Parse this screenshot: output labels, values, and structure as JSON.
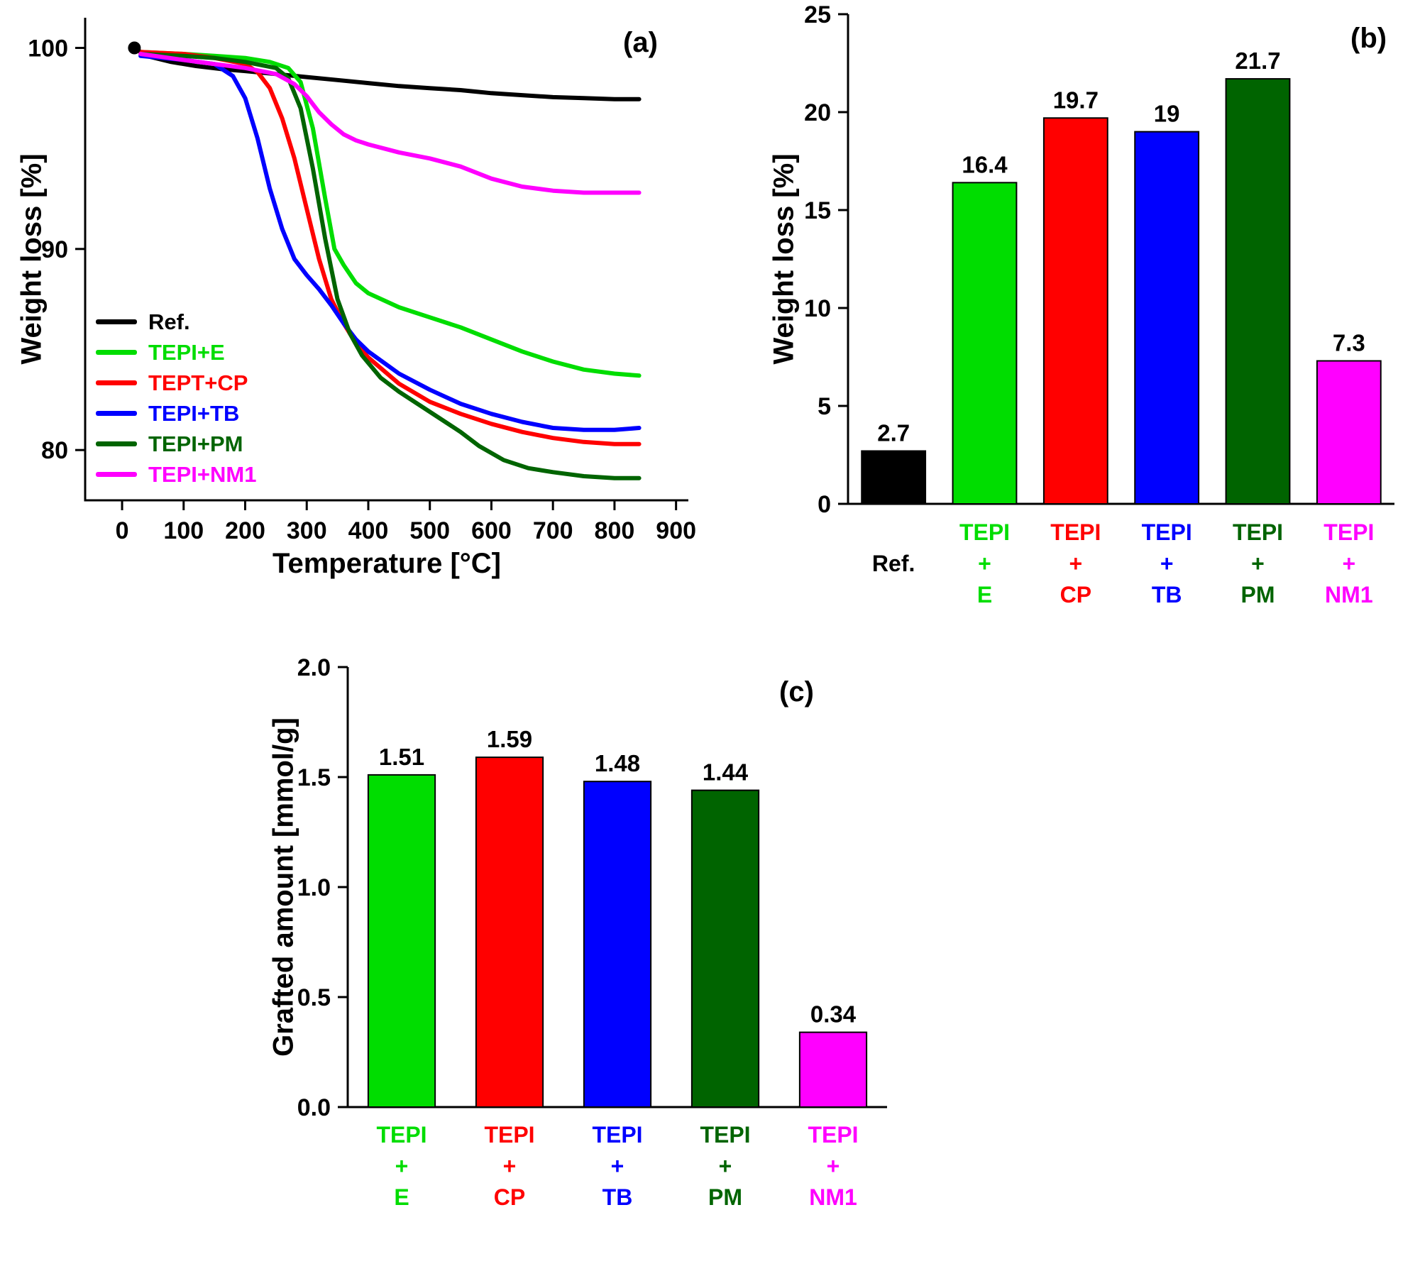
{
  "chart_data": [
    {
      "id": "a",
      "type": "line",
      "tag": "(a)",
      "xlabel": "Temperature [°C]",
      "ylabel": "Weight loss [%]",
      "xlim": [
        -60,
        920
      ],
      "ylim": [
        77.5,
        101.5
      ],
      "xticks": [
        0,
        100,
        200,
        300,
        400,
        500,
        600,
        700,
        800,
        900
      ],
      "xtick_labels": [
        "0",
        "100",
        "200",
        "300",
        "400",
        "500",
        "600",
        "700",
        "800",
        "900"
      ],
      "yticks": [
        80,
        90,
        100
      ],
      "ytick_labels": [
        "80",
        "90",
        "100"
      ],
      "grid": false,
      "legend_position": "inside bottom-left",
      "series": [
        {
          "name": "Ref.",
          "color": "#000000",
          "points": [
            [
              20,
              100
            ],
            [
              40,
              99.6
            ],
            [
              80,
              99.3
            ],
            [
              120,
              99.1
            ],
            [
              160,
              98.95
            ],
            [
              200,
              98.85
            ],
            [
              250,
              98.7
            ],
            [
              300,
              98.55
            ],
            [
              350,
              98.4
            ],
            [
              400,
              98.25
            ],
            [
              450,
              98.1
            ],
            [
              500,
              98
            ],
            [
              550,
              97.9
            ],
            [
              600,
              97.75
            ],
            [
              650,
              97.65
            ],
            [
              700,
              97.55
            ],
            [
              750,
              97.5
            ],
            [
              800,
              97.45
            ],
            [
              840,
              97.45
            ]
          ]
        },
        {
          "name": "TEPI+E",
          "color": "#00dd00",
          "points": [
            [
              30,
              99.8
            ],
            [
              100,
              99.7
            ],
            [
              150,
              99.6
            ],
            [
              200,
              99.5
            ],
            [
              240,
              99.3
            ],
            [
              270,
              99
            ],
            [
              290,
              98.3
            ],
            [
              310,
              96
            ],
            [
              330,
              92.5
            ],
            [
              345,
              90
            ],
            [
              360,
              89.2
            ],
            [
              380,
              88.3
            ],
            [
              400,
              87.8
            ],
            [
              450,
              87.1
            ],
            [
              500,
              86.6
            ],
            [
              550,
              86.1
            ],
            [
              600,
              85.5
            ],
            [
              650,
              84.9
            ],
            [
              700,
              84.4
            ],
            [
              750,
              84
            ],
            [
              800,
              83.8
            ],
            [
              840,
              83.7
            ]
          ]
        },
        {
          "name": "TEPT+CP",
          "color": "#ff0000",
          "points": [
            [
              30,
              99.8
            ],
            [
              100,
              99.7
            ],
            [
              150,
              99.5
            ],
            [
              200,
              99.2
            ],
            [
              220,
              98.8
            ],
            [
              240,
              98
            ],
            [
              260,
              96.5
            ],
            [
              280,
              94.5
            ],
            [
              300,
              92
            ],
            [
              320,
              89.5
            ],
            [
              340,
              87.5
            ],
            [
              360,
              86.3
            ],
            [
              380,
              85.3
            ],
            [
              400,
              84.6
            ],
            [
              450,
              83.3
            ],
            [
              500,
              82.4
            ],
            [
              550,
              81.8
            ],
            [
              600,
              81.3
            ],
            [
              650,
              80.9
            ],
            [
              700,
              80.6
            ],
            [
              750,
              80.4
            ],
            [
              800,
              80.3
            ],
            [
              840,
              80.3
            ]
          ]
        },
        {
          "name": "TEPI+TB",
          "color": "#0000ff",
          "points": [
            [
              30,
              99.6
            ],
            [
              100,
              99.4
            ],
            [
              150,
              99.2
            ],
            [
              180,
              98.6
            ],
            [
              200,
              97.5
            ],
            [
              220,
              95.5
            ],
            [
              240,
              93
            ],
            [
              260,
              91
            ],
            [
              280,
              89.5
            ],
            [
              300,
              88.7
            ],
            [
              320,
              88
            ],
            [
              340,
              87.2
            ],
            [
              360,
              86.3
            ],
            [
              380,
              85.5
            ],
            [
              400,
              84.9
            ],
            [
              450,
              83.8
            ],
            [
              500,
              83
            ],
            [
              550,
              82.3
            ],
            [
              600,
              81.8
            ],
            [
              650,
              81.4
            ],
            [
              700,
              81.1
            ],
            [
              750,
              81
            ],
            [
              800,
              81
            ],
            [
              840,
              81.1
            ]
          ]
        },
        {
          "name": "TEPI+PM",
          "color": "#006400",
          "points": [
            [
              30,
              99.7
            ],
            [
              100,
              99.6
            ],
            [
              150,
              99.5
            ],
            [
              200,
              99.3
            ],
            [
              250,
              99
            ],
            [
              270,
              98.5
            ],
            [
              290,
              97
            ],
            [
              310,
              94
            ],
            [
              330,
              90.5
            ],
            [
              350,
              87.5
            ],
            [
              370,
              85.8
            ],
            [
              390,
              84.7
            ],
            [
              420,
              83.6
            ],
            [
              450,
              82.9
            ],
            [
              500,
              81.9
            ],
            [
              550,
              80.9
            ],
            [
              580,
              80.2
            ],
            [
              620,
              79.5
            ],
            [
              660,
              79.1
            ],
            [
              700,
              78.9
            ],
            [
              750,
              78.7
            ],
            [
              800,
              78.6
            ],
            [
              840,
              78.6
            ]
          ]
        },
        {
          "name": "TEPI+NM1",
          "color": "#ff00ff",
          "points": [
            [
              30,
              99.7
            ],
            [
              100,
              99.4
            ],
            [
              150,
              99.2
            ],
            [
              200,
              99
            ],
            [
              250,
              98.7
            ],
            [
              280,
              98.2
            ],
            [
              300,
              97.6
            ],
            [
              320,
              96.8
            ],
            [
              340,
              96.2
            ],
            [
              360,
              95.7
            ],
            [
              380,
              95.4
            ],
            [
              400,
              95.2
            ],
            [
              450,
              94.8
            ],
            [
              500,
              94.5
            ],
            [
              550,
              94.1
            ],
            [
              600,
              93.5
            ],
            [
              650,
              93.1
            ],
            [
              700,
              92.9
            ],
            [
              750,
              92.8
            ],
            [
              800,
              92.8
            ],
            [
              840,
              92.8
            ]
          ]
        }
      ]
    },
    {
      "id": "b",
      "type": "bar",
      "tag": "(b)",
      "xlabel": "",
      "ylabel": "Weight loss [%]",
      "ylim": [
        0,
        25
      ],
      "yticks": [
        0,
        5,
        10,
        15,
        20,
        25
      ],
      "ytick_labels": [
        "0",
        "5",
        "10",
        "15",
        "20",
        "25"
      ],
      "grid": false,
      "categories": [
        {
          "lines": [
            "Ref."
          ],
          "color": "#000000"
        },
        {
          "lines": [
            "TEPI",
            "+",
            "E"
          ],
          "color": "#00dd00"
        },
        {
          "lines": [
            "TEPI",
            "+",
            "CP"
          ],
          "color": "#ff0000"
        },
        {
          "lines": [
            "TEPI",
            "+",
            "TB"
          ],
          "color": "#0000ff"
        },
        {
          "lines": [
            "TEPI",
            "+",
            "PM"
          ],
          "color": "#006400"
        },
        {
          "lines": [
            "TEPI",
            "+",
            "NM1"
          ],
          "color": "#ff00ff"
        }
      ],
      "values": [
        2.7,
        16.4,
        19.7,
        19,
        21.7,
        7.3
      ],
      "value_labels": [
        "2.7",
        "16.4",
        "19.7",
        "19",
        "21.7",
        "7.3"
      ]
    },
    {
      "id": "c",
      "type": "bar",
      "tag": "(c)",
      "xlabel": "",
      "ylabel": "Grafted amount [mmol/g]",
      "ylim": [
        0,
        2.0
      ],
      "yticks": [
        0,
        0.5,
        1,
        1.5,
        2
      ],
      "ytick_labels": [
        "0.0",
        "0.5",
        "1.0",
        "1.5",
        "2.0"
      ],
      "grid": false,
      "categories": [
        {
          "lines": [
            "TEPI",
            "+",
            "E"
          ],
          "color": "#00dd00"
        },
        {
          "lines": [
            "TEPI",
            "+",
            "CP"
          ],
          "color": "#ff0000"
        },
        {
          "lines": [
            "TEPI",
            "+",
            "TB"
          ],
          "color": "#0000ff"
        },
        {
          "lines": [
            "TEPI",
            "+",
            "PM"
          ],
          "color": "#006400"
        },
        {
          "lines": [
            "TEPI",
            "+",
            "NM1"
          ],
          "color": "#ff00ff"
        }
      ],
      "values": [
        1.51,
        1.59,
        1.48,
        1.44,
        0.34
      ],
      "value_labels": [
        "1.51",
        "1.59",
        "1.48",
        "1.44",
        "0.34"
      ]
    }
  ]
}
